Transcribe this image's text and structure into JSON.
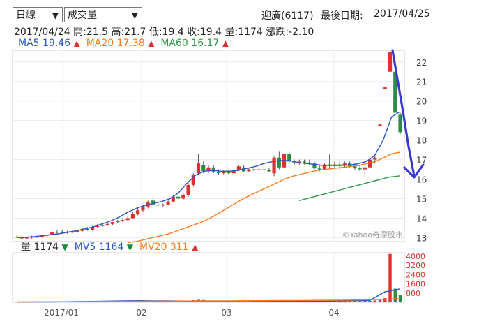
{
  "controls": {
    "period": "日線",
    "indicator": "成交量"
  },
  "header": {
    "stock": "迎廣(6117)",
    "last_date_label": "最後日期:",
    "last_date": "2017/04/25"
  },
  "quote": {
    "date": "2017/04/24",
    "open": "開:21.5",
    "high": "高:21.7",
    "low": "低:19.4",
    "close": "收:19.4",
    "volume": "量:1174",
    "change": "漲跌:-2.10"
  },
  "ma": [
    {
      "label": "MA5",
      "value": "19.46",
      "color": "#2a55c8",
      "arrow": "▲"
    },
    {
      "label": "MA20",
      "value": "17.38",
      "color": "#ff7a1a",
      "arrow": "▲"
    },
    {
      "label": "MA60",
      "value": "16.17",
      "color": "#2e9a48",
      "arrow": "▲"
    }
  ],
  "vol_legend": [
    {
      "label": "量",
      "value": "1174",
      "color": "#222222",
      "arrow": "▼",
      "arrow_color": "#1a8a3a"
    },
    {
      "label": "MV5",
      "value": "1164",
      "color": "#2a55c8",
      "arrow": "▼",
      "arrow_color": "#1a8a3a"
    },
    {
      "label": "MV20",
      "value": "311",
      "color": "#ff7a1a",
      "arrow": "▲",
      "arrow_color": "#e03030"
    }
  ],
  "watermark": "©Yahoo奇摩股市",
  "chart_data": {
    "type": "candlestick",
    "price_axis": {
      "ticks": [
        13,
        14,
        15,
        16,
        17,
        18,
        19,
        20,
        21,
        22
      ],
      "range": [
        12.8,
        22.6
      ]
    },
    "volume_axis": {
      "ticks": [
        800,
        1600,
        2400,
        3200,
        4000
      ],
      "range": [
        0,
        4300
      ]
    },
    "x_labels": [
      "2017/01",
      "02",
      "03",
      "04"
    ],
    "candles": [
      [
        13.05,
        13.1,
        13.0,
        13.05
      ],
      [
        13.0,
        13.1,
        12.95,
        13.0
      ],
      [
        13.0,
        13.05,
        12.95,
        13.0
      ],
      [
        13.0,
        13.1,
        12.95,
        13.05
      ],
      [
        13.05,
        13.1,
        13.0,
        13.05
      ],
      [
        13.05,
        13.15,
        13.0,
        13.1
      ],
      [
        13.1,
        13.2,
        13.05,
        13.15
      ],
      [
        13.15,
        13.35,
        13.1,
        13.3
      ],
      [
        13.3,
        13.4,
        13.2,
        13.3
      ],
      [
        13.3,
        13.4,
        13.2,
        13.25
      ],
      [
        13.25,
        13.35,
        13.2,
        13.3
      ],
      [
        13.3,
        13.35,
        13.25,
        13.3
      ],
      [
        13.3,
        13.4,
        13.25,
        13.35
      ],
      [
        13.35,
        13.5,
        13.3,
        13.45
      ],
      [
        13.45,
        13.55,
        13.35,
        13.4
      ],
      [
        13.4,
        13.6,
        13.35,
        13.55
      ],
      [
        13.55,
        13.7,
        13.5,
        13.6
      ],
      [
        13.6,
        13.7,
        13.55,
        13.65
      ],
      [
        13.65,
        13.75,
        13.6,
        13.7
      ],
      [
        13.7,
        13.8,
        13.65,
        13.8
      ],
      [
        13.8,
        13.9,
        13.75,
        13.85
      ],
      [
        13.85,
        14.0,
        13.8,
        13.9
      ],
      [
        13.9,
        14.1,
        13.85,
        14.0
      ],
      [
        14.0,
        14.3,
        13.95,
        14.2
      ],
      [
        14.2,
        14.5,
        14.15,
        14.4
      ],
      [
        14.4,
        14.7,
        14.3,
        14.6
      ],
      [
        14.6,
        14.9,
        14.5,
        14.8
      ],
      [
        14.9,
        15.1,
        14.6,
        14.7
      ],
      [
        14.7,
        14.8,
        14.55,
        14.65
      ],
      [
        14.65,
        14.75,
        14.55,
        14.7
      ],
      [
        14.7,
        14.9,
        14.65,
        14.85
      ],
      [
        14.85,
        15.2,
        14.8,
        15.1
      ],
      [
        15.1,
        15.3,
        14.9,
        15.0
      ],
      [
        15.0,
        15.3,
        14.95,
        15.2
      ],
      [
        15.2,
        15.8,
        15.1,
        15.7
      ],
      [
        15.7,
        16.3,
        15.6,
        16.2
      ],
      [
        16.3,
        17.3,
        16.2,
        16.8
      ],
      [
        16.7,
        16.9,
        16.3,
        16.4
      ],
      [
        16.4,
        16.7,
        16.3,
        16.6
      ],
      [
        16.6,
        16.7,
        16.3,
        16.35
      ],
      [
        16.35,
        16.5,
        16.2,
        16.3
      ],
      [
        16.3,
        16.45,
        16.25,
        16.35
      ],
      [
        16.35,
        16.5,
        16.25,
        16.3
      ],
      [
        16.3,
        16.5,
        16.25,
        16.45
      ],
      [
        16.45,
        16.7,
        16.4,
        16.65
      ],
      [
        16.6,
        16.7,
        16.35,
        16.4
      ],
      [
        16.4,
        16.55,
        16.35,
        16.5
      ],
      [
        16.5,
        16.55,
        16.35,
        16.45
      ],
      [
        16.45,
        16.55,
        16.4,
        16.5
      ],
      [
        16.5,
        16.6,
        16.4,
        16.45
      ],
      [
        16.45,
        16.55,
        16.35,
        16.4
      ],
      [
        16.3,
        17.2,
        16.15,
        17.1
      ],
      [
        17.1,
        17.4,
        16.5,
        16.6
      ],
      [
        16.6,
        17.4,
        16.5,
        17.3
      ],
      [
        17.3,
        17.4,
        16.8,
        16.9
      ],
      [
        16.9,
        17.0,
        16.7,
        16.85
      ],
      [
        16.85,
        17.0,
        16.7,
        16.9
      ],
      [
        16.9,
        17.0,
        16.75,
        16.85
      ],
      [
        16.85,
        17.0,
        16.7,
        16.8
      ],
      [
        16.8,
        16.9,
        16.5,
        16.55
      ],
      [
        16.55,
        16.7,
        16.4,
        16.5
      ],
      [
        16.5,
        16.8,
        16.45,
        16.75
      ],
      [
        16.75,
        17.3,
        16.5,
        16.7
      ],
      [
        16.7,
        16.9,
        16.6,
        16.75
      ],
      [
        16.75,
        16.9,
        16.5,
        16.7
      ],
      [
        16.7,
        16.9,
        16.6,
        16.8
      ],
      [
        16.8,
        16.9,
        16.6,
        16.65
      ],
      [
        16.65,
        16.8,
        16.5,
        16.55
      ],
      [
        16.55,
        16.7,
        16.4,
        16.5
      ],
      [
        16.5,
        16.9,
        16.1,
        16.6
      ],
      [
        16.6,
        17.2,
        16.5,
        17.0
      ],
      [
        17.0,
        17.2,
        16.8,
        17.1
      ],
      [
        18.7,
        18.8,
        18.7,
        18.8
      ],
      [
        20.6,
        20.7,
        20.6,
        20.7
      ],
      [
        21.5,
        22.7,
        21.3,
        22.5
      ],
      [
        21.5,
        21.7,
        19.4,
        19.4
      ],
      [
        19.3,
        19.4,
        18.3,
        18.4
      ]
    ],
    "ma5": [
      13.0,
      13.02,
      13.05,
      13.1,
      13.15,
      13.2,
      13.28,
      13.35,
      13.45,
      13.55,
      13.7,
      13.85,
      14.05,
      14.3,
      14.5,
      14.65,
      14.75,
      14.85,
      15.0,
      15.3,
      15.8,
      16.2,
      16.4,
      16.45,
      16.4,
      16.4,
      16.45,
      16.55,
      16.65,
      16.8,
      16.9,
      16.95,
      16.95,
      16.85,
      16.8,
      16.75,
      16.7,
      16.7,
      16.7,
      16.72,
      16.78,
      16.9,
      17.2,
      18.0,
      19.2,
      19.46
    ],
    "ma20": [
      12.75,
      12.8,
      12.9,
      13.0,
      13.1,
      13.2,
      13.35,
      13.5,
      13.65,
      13.8,
      14.0,
      14.25,
      14.5,
      14.75,
      15.0,
      15.2,
      15.4,
      15.6,
      15.8,
      16.0,
      16.15,
      16.25,
      16.35,
      16.45,
      16.5,
      16.55,
      16.6,
      16.65,
      16.7,
      16.8,
      16.9,
      17.1,
      17.3,
      17.38
    ],
    "ma60": [
      14.9,
      15.05,
      15.2,
      15.35,
      15.5,
      15.65,
      15.8,
      15.95,
      16.1,
      16.17
    ],
    "volumes": [
      20,
      15,
      15,
      20,
      25,
      20,
      25,
      40,
      30,
      25,
      20,
      20,
      25,
      35,
      40,
      45,
      40,
      35,
      40,
      45,
      50,
      60,
      70,
      80,
      90,
      100,
      120,
      150,
      130,
      110,
      100,
      110,
      140,
      120,
      150,
      180,
      220,
      200,
      160,
      130,
      110,
      100,
      90,
      95,
      100,
      85,
      80,
      90,
      85,
      80,
      90,
      140,
      130,
      120,
      110,
      100,
      95,
      90,
      85,
      90,
      95,
      100,
      110,
      105,
      100,
      95,
      90,
      95,
      100,
      110,
      130,
      160,
      200,
      350,
      4200,
      1174,
      600
    ],
    "mv5": [
      20,
      25,
      30,
      40,
      60,
      80,
      100,
      120,
      140,
      130,
      120,
      110,
      100,
      100,
      110,
      120,
      110,
      100,
      95,
      95,
      100,
      120,
      140,
      160,
      900,
      1164
    ],
    "mv20": [
      30,
      40,
      50,
      60,
      70,
      80,
      90,
      100,
      110,
      120,
      130,
      140,
      150,
      160,
      170,
      180,
      200,
      250,
      311
    ]
  }
}
